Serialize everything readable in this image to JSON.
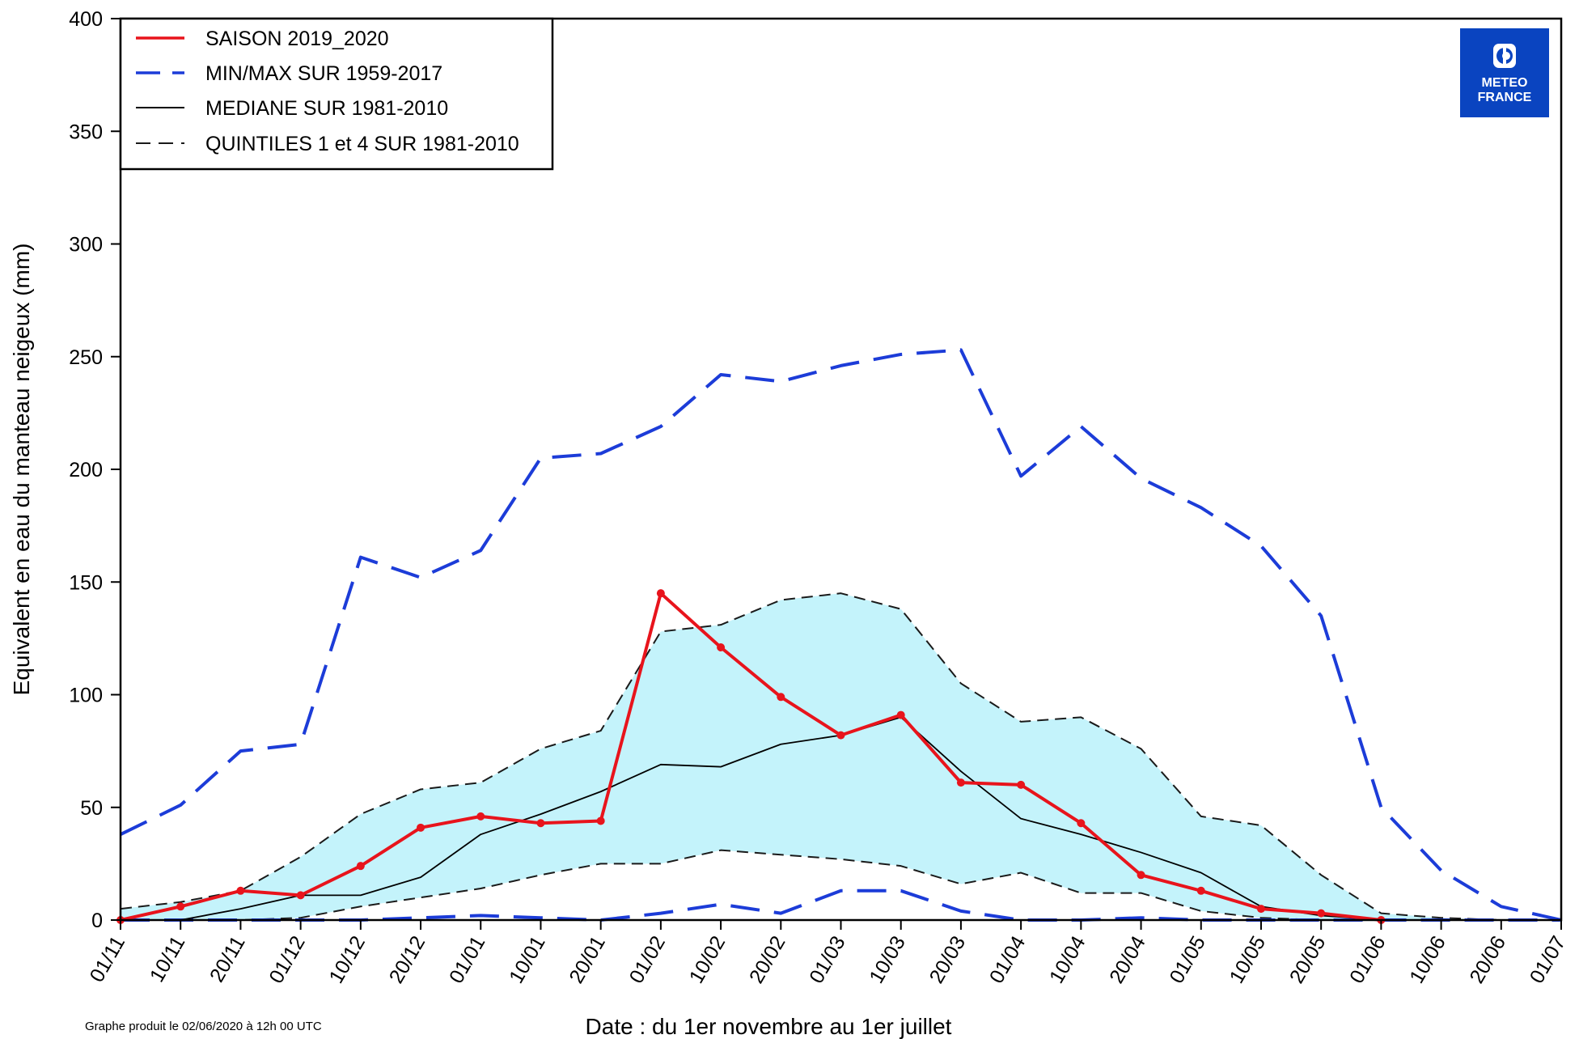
{
  "chart_data": {
    "type": "line",
    "xlabel": "Date : du 1er novembre au 1er juillet",
    "ylabel": "Equivalent en eau du manteau neigeux (mm)",
    "ylim": [
      0,
      400
    ],
    "yticks": [
      0,
      50,
      100,
      150,
      200,
      250,
      300,
      350,
      400
    ],
    "categories": [
      "01/11",
      "10/11",
      "20/11",
      "01/12",
      "10/12",
      "20/12",
      "01/01",
      "10/01",
      "20/01",
      "01/02",
      "10/02",
      "20/02",
      "01/03",
      "10/03",
      "20/03",
      "01/04",
      "10/04",
      "20/04",
      "01/05",
      "10/05",
      "20/05",
      "01/06",
      "10/06",
      "20/06",
      "01/07"
    ],
    "grid": false,
    "legend_position": "top-left",
    "series": [
      {
        "name": "SAISON 2019_2020",
        "color": "#e8141c",
        "style": "solid-markers",
        "values": [
          0,
          6,
          13,
          11,
          24,
          41,
          46,
          43,
          44,
          145,
          121,
          99,
          82,
          91,
          61,
          60,
          43,
          20,
          13,
          5,
          3,
          0,
          null,
          null,
          null
        ]
      },
      {
        "name": "MIN/MAX SUR 1959-2017",
        "color": "#1c3cd8",
        "style": "dashed-long",
        "role": "max",
        "values": [
          38,
          51,
          75,
          78,
          161,
          152,
          164,
          205,
          207,
          219,
          242,
          239,
          246,
          251,
          253,
          197,
          219,
          196,
          183,
          166,
          135,
          50,
          22,
          6,
          0
        ]
      },
      {
        "name": "",
        "color": "#1c3cd8",
        "style": "dashed-long",
        "role": "min",
        "values": [
          0,
          0,
          0,
          0,
          0,
          1,
          2,
          1,
          0,
          3,
          7,
          3,
          13,
          13,
          4,
          0,
          0,
          1,
          0,
          0,
          0,
          0,
          0,
          0,
          0
        ]
      },
      {
        "name": "MEDIANE SUR 1981-2010",
        "color": "#000000",
        "style": "solid-thin",
        "values": [
          0,
          0,
          5,
          11,
          11,
          19,
          38,
          47,
          57,
          69,
          68,
          78,
          82,
          90,
          66,
          45,
          38,
          30,
          21,
          6,
          2,
          0,
          0,
          0,
          0
        ]
      },
      {
        "name": "QUINTILES 1 et 4 SUR 1981-2010",
        "color": "#1a1a1a",
        "style": "dashed-short",
        "role": "q4",
        "values": [
          5,
          8,
          13,
          28,
          47,
          58,
          61,
          76,
          84,
          128,
          131,
          142,
          145,
          138,
          105,
          88,
          90,
          76,
          46,
          42,
          20,
          3,
          1,
          0,
          0
        ]
      },
      {
        "name": "",
        "color": "#1a1a1a",
        "style": "dashed-short",
        "role": "q1",
        "values": [
          0,
          0,
          0,
          1,
          6,
          10,
          14,
          20,
          25,
          25,
          31,
          29,
          27,
          24,
          16,
          21,
          12,
          12,
          4,
          1,
          0,
          0,
          0,
          0,
          0
        ]
      }
    ],
    "band_fill_color": "#c4f3fb"
  },
  "logo": {
    "line1": "METEO",
    "line2": "FRANCE",
    "color": "#0a44c0"
  },
  "footnote": "Graphe produit le 02/06/2020 à 12h 00 UTC"
}
